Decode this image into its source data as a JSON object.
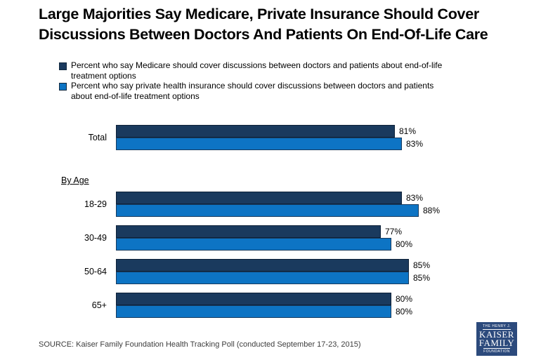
{
  "title": {
    "line1": "Large Majorities Say Medicare, Private Insurance Should Cover",
    "line2": "Discussions Between Doctors And Patients On End-Of-Life Care"
  },
  "legend": {
    "items": [
      {
        "swatch_color": "#1a3a5e",
        "swatch_border": "#12293f",
        "line1": "Percent who say Medicare should cover discussions between doctors and patients about end-of-life",
        "line2": "treatment options"
      },
      {
        "swatch_color": "#0d74c4",
        "swatch_border": "#12293f",
        "line1": "Percent who say private health insurance should cover discussions between doctors and patients",
        "line2": "about end-of-life treatment options"
      }
    ]
  },
  "chart_data": {
    "type": "bar",
    "orientation": "horizontal",
    "categories": [
      "Total",
      "18-29",
      "30-49",
      "50-64",
      "65+"
    ],
    "section_heading": {
      "label": "By Age",
      "before_category": "18-29"
    },
    "series": [
      {
        "name": "Percent who say Medicare should cover discussions between doctors and patients about end-of-life treatment options",
        "color": "#1a3a5e",
        "border_color": "#0e2138",
        "values": [
          81,
          83,
          77,
          85,
          80
        ]
      },
      {
        "name": "Percent who say private health insurance should cover discussions between doctors and patients about end-of-life treatment options",
        "color": "#0d74c4",
        "border_color": "#173a5e",
        "values": [
          83,
          88,
          80,
          85,
          80
        ]
      }
    ],
    "value_suffix": "%",
    "xlim": [
      0,
      100
    ],
    "grid": false,
    "legend_position": "top"
  },
  "footer": {
    "source": "SOURCE: Kaiser Family Foundation Health Tracking Poll (conducted September 17-23, 2015)"
  },
  "logo": {
    "line1": "THE HENRY J.",
    "line2": "KAISER",
    "line3": "FAMILY",
    "line4": "FOUNDATION",
    "bg_color": "#2c4a7c"
  }
}
